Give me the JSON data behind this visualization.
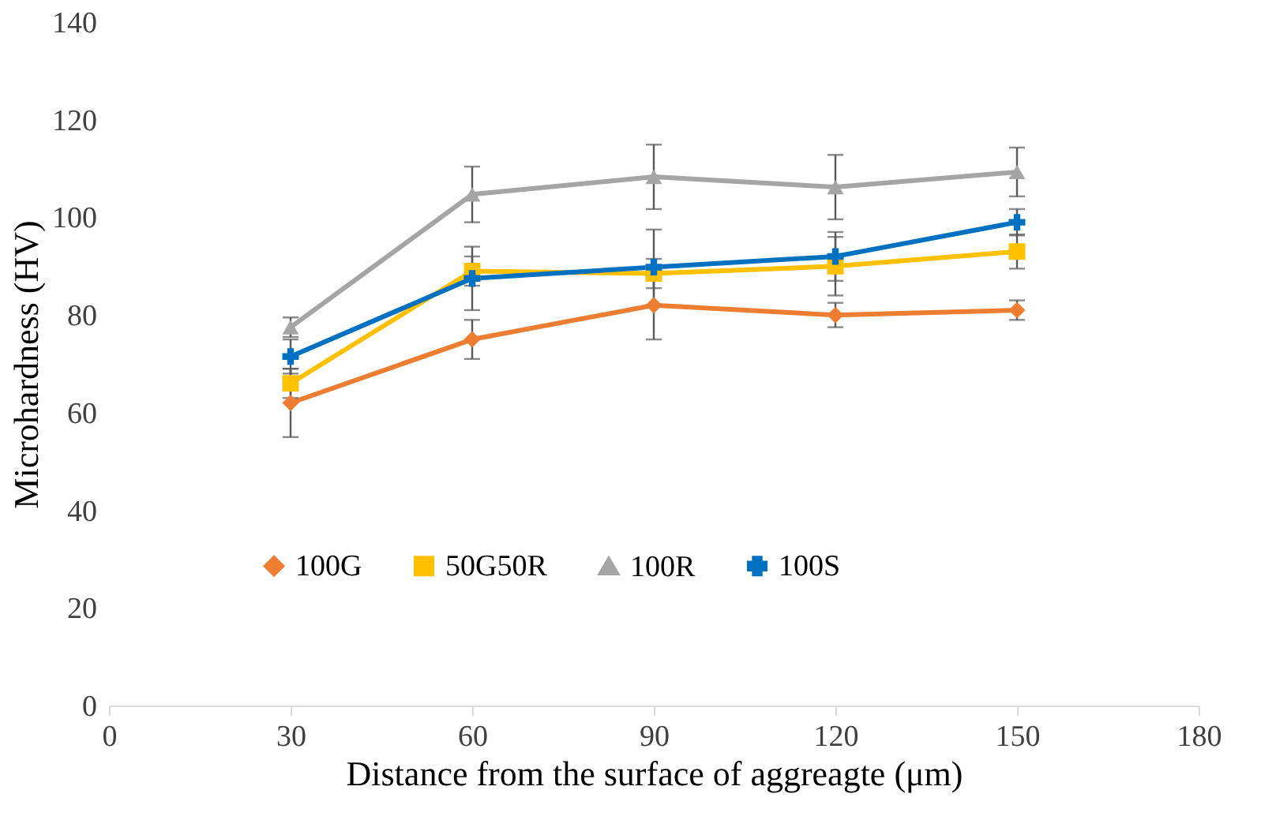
{
  "chart_data": {
    "type": "line",
    "xlabel": "Distance from the surface of aggreagte (μm)",
    "ylabel": "Microhardness (HV)",
    "x": [
      30,
      60,
      90,
      120,
      150
    ],
    "xlim": [
      0,
      180
    ],
    "xticks": [
      0,
      30,
      60,
      90,
      120,
      150,
      180
    ],
    "ylim": [
      0,
      140
    ],
    "yticks": [
      0,
      20,
      40,
      60,
      80,
      100,
      120,
      140
    ],
    "grid": false,
    "legend": "bottom",
    "line_style": "solid",
    "series": [
      {
        "name": "100G",
        "color": "#ed7d31",
        "marker": "diamond",
        "values": [
          62,
          75,
          82,
          80,
          81
        ],
        "errors": [
          7,
          4,
          7,
          2.5,
          2
        ]
      },
      {
        "name": "50G50R",
        "color": "#ffc000",
        "marker": "square",
        "values": [
          66,
          89,
          88.5,
          90,
          93
        ],
        "errors": [
          3,
          3,
          3,
          6,
          3.5
        ]
      },
      {
        "name": "100R",
        "color": "#a5a5a5",
        "marker": "triangle",
        "values": [
          77.5,
          104.7,
          108.3,
          106.2,
          109.3
        ],
        "errors": [
          2,
          5.7,
          6.6,
          6.6,
          5
        ]
      },
      {
        "name": "100S",
        "color": "#0070c0",
        "marker": "cross",
        "values": [
          71.5,
          87.5,
          89.8,
          92,
          99
        ],
        "errors": [
          3.5,
          6.5,
          7.7,
          5,
          2.7
        ]
      }
    ]
  }
}
